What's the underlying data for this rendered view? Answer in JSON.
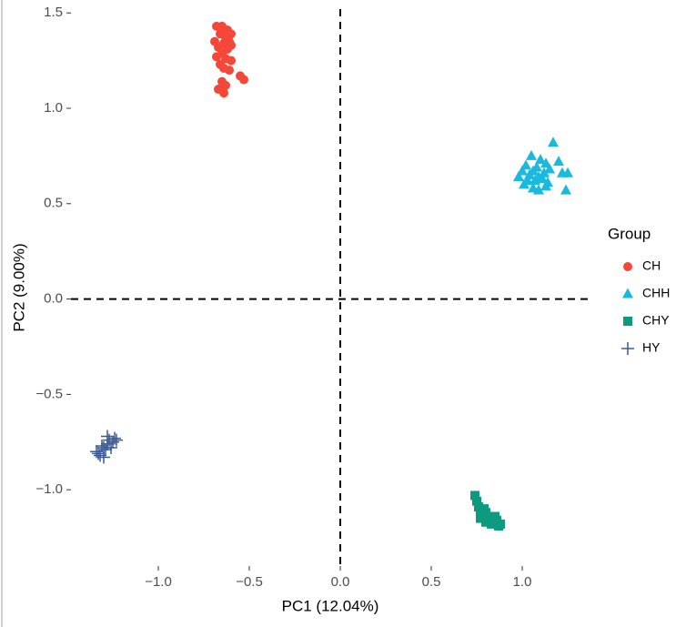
{
  "chart_data": {
    "type": "scatter",
    "xlabel": "PC1 (12.04%)",
    "ylabel": "PC2 (9.00%)",
    "legend_title": "Group",
    "legend": "right",
    "xlim": [
      -1.48,
      1.37
    ],
    "ylim": [
      -1.4,
      1.52
    ],
    "xticks": [
      {
        "value": -1.0,
        "label": "−1.0"
      },
      {
        "value": -0.5,
        "label": "−0.5"
      },
      {
        "value": 0.0,
        "label": "0.0"
      },
      {
        "value": 0.5,
        "label": "0.5"
      },
      {
        "value": 1.0,
        "label": "1.0"
      }
    ],
    "yticks": [
      {
        "value": -1.0,
        "label": "−1.0"
      },
      {
        "value": -0.5,
        "label": "−0.5"
      },
      {
        "value": 0.0,
        "label": "0.0"
      },
      {
        "value": 0.5,
        "label": "0.5"
      },
      {
        "value": 1.0,
        "label": "1.0"
      },
      {
        "value": 1.5,
        "label": "1.5"
      }
    ],
    "hline": 0,
    "vline": 0,
    "grid": false,
    "series": [
      {
        "name": "CH",
        "color": "#f4473a",
        "marker": "circle",
        "x": [
          -0.68,
          -0.65,
          -0.62,
          -0.6,
          -0.66,
          -0.63,
          -0.61,
          -0.69,
          -0.64,
          -0.6,
          -0.67,
          -0.62,
          -0.65,
          -0.68,
          -0.63,
          -0.6,
          -0.66,
          -0.64,
          -0.55,
          -0.53,
          -0.65,
          -0.63,
          -0.67,
          -0.61,
          -0.64
        ],
        "y": [
          1.43,
          1.43,
          1.41,
          1.39,
          1.39,
          1.37,
          1.35,
          1.35,
          1.34,
          1.33,
          1.32,
          1.31,
          1.29,
          1.27,
          1.26,
          1.25,
          1.23,
          1.21,
          1.17,
          1.15,
          1.14,
          1.12,
          1.1,
          1.2,
          1.08
        ]
      },
      {
        "name": "CHH",
        "color": "#1ab9de",
        "marker": "triangle",
        "x": [
          1.17,
          1.05,
          1.1,
          1.2,
          1.13,
          1.02,
          1.08,
          1.15,
          1.0,
          1.06,
          1.12,
          1.22,
          1.04,
          1.09,
          0.98,
          1.11,
          1.07,
          1.03,
          1.14,
          1.25,
          1.01,
          1.13,
          1.06,
          1.24,
          1.09
        ],
        "y": [
          0.82,
          0.75,
          0.73,
          0.72,
          0.71,
          0.7,
          0.69,
          0.68,
          0.67,
          0.67,
          0.66,
          0.66,
          0.65,
          0.64,
          0.64,
          0.63,
          0.62,
          0.62,
          0.61,
          0.66,
          0.6,
          0.59,
          0.58,
          0.57,
          0.57
        ]
      },
      {
        "name": "CHY",
        "color": "#0e9a7e",
        "marker": "square",
        "x": [
          0.74,
          0.75,
          0.76,
          0.77,
          0.79,
          0.8,
          0.81,
          0.77,
          0.83,
          0.84,
          0.86,
          0.88,
          0.8,
          0.82,
          0.85,
          0.78,
          0.83,
          0.87
        ],
        "y": [
          -1.03,
          -1.06,
          -1.09,
          -1.11,
          -1.1,
          -1.12,
          -1.14,
          -1.15,
          -1.15,
          -1.17,
          -1.16,
          -1.18,
          -1.17,
          -1.16,
          -1.14,
          -1.13,
          -1.18,
          -1.19
        ]
      },
      {
        "name": "HY",
        "color": "#3a5a96",
        "marker": "plus",
        "x": [
          -1.34,
          -1.32,
          -1.3,
          -1.28,
          -1.27,
          -1.25,
          -1.24,
          -1.29,
          -1.31,
          -1.26,
          -1.33,
          -1.28,
          -1.23,
          -1.3
        ],
        "y": [
          -0.8,
          -0.82,
          -0.78,
          -0.76,
          -0.74,
          -0.75,
          -0.73,
          -0.79,
          -0.77,
          -0.78,
          -0.81,
          -0.72,
          -0.74,
          -0.83
        ]
      }
    ]
  }
}
